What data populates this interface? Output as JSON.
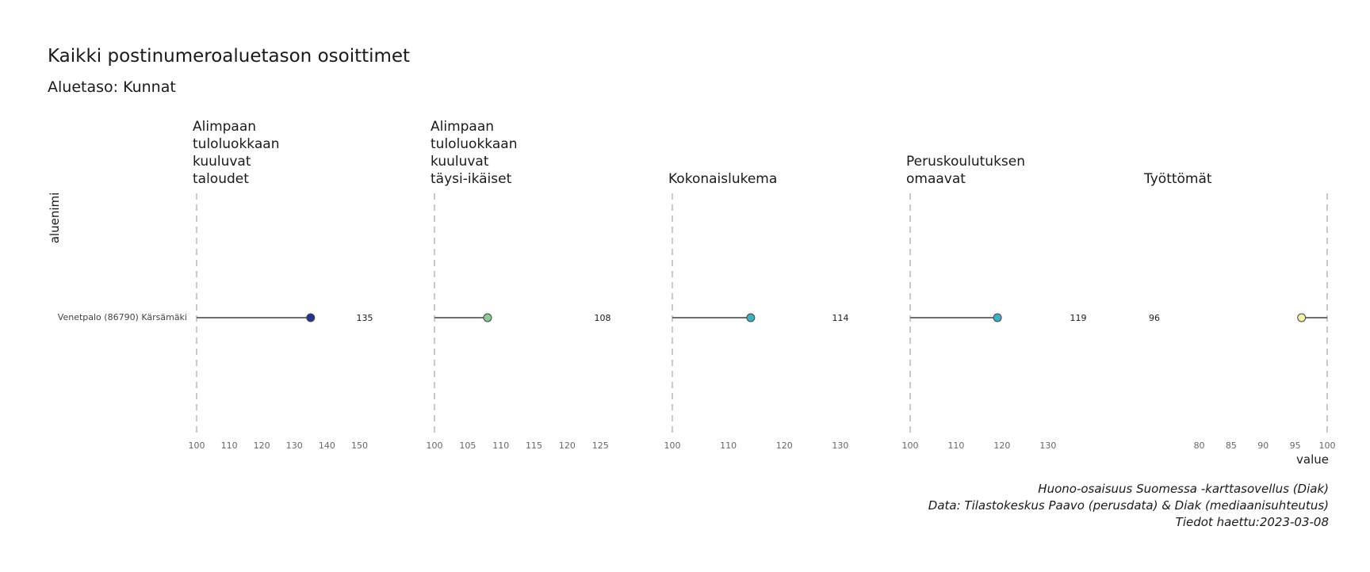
{
  "chart_data": {
    "type": "lollipop",
    "title": "Kaikki postinumeroaluetason osoittimet",
    "subtitle": "Aluetaso: Kunnat",
    "ylabel": "aluenimi",
    "xlabel": "value",
    "category": "Venetpalo (86790) Kärsämäki",
    "reference_value": 100,
    "caption": [
      "Huono-osaisuus Suomessa -karttasovellus (Diak)",
      "Data: Tilastokeskus Paavo (perusdata) & Diak (mediaanisuhteutus)",
      "Tiedot haettu:2023-03-08"
    ],
    "facets": [
      {
        "title": [
          "Alimpaan",
          "tuloluokkaan",
          "kuuluvat",
          "taloudet"
        ],
        "value": 135,
        "value_label": "135",
        "xlim": [
          100,
          155
        ],
        "ticks": [
          100,
          110,
          120,
          130,
          140,
          150
        ],
        "color": "#26348f"
      },
      {
        "title": [
          "Alimpaan",
          "tuloluokkaan",
          "kuuluvat",
          "täysi-ikäiset"
        ],
        "value": 108,
        "value_label": "108",
        "xlim": [
          100,
          127
        ],
        "ticks": [
          100,
          105,
          110,
          115,
          120,
          125
        ],
        "color": "#8cc99a"
      },
      {
        "title": [
          "Kokonaislukema"
        ],
        "value": 114,
        "value_label": "114",
        "xlim": [
          100,
          132
        ],
        "ticks": [
          100,
          110,
          120,
          130
        ],
        "color": "#3fb1c1"
      },
      {
        "title": [
          "Peruskoulutuksen",
          "omaavat"
        ],
        "value": 119,
        "value_label": "119",
        "xlim": [
          100,
          139
        ],
        "ticks": [
          100,
          110,
          120,
          130
        ],
        "color": "#40afc5"
      },
      {
        "title": [
          "Työttömät"
        ],
        "value": 96,
        "value_label": "96",
        "xlim": [
          72,
          100
        ],
        "ticks": [
          80,
          85,
          90,
          95,
          100
        ],
        "color": "#f4f0a5"
      }
    ]
  }
}
